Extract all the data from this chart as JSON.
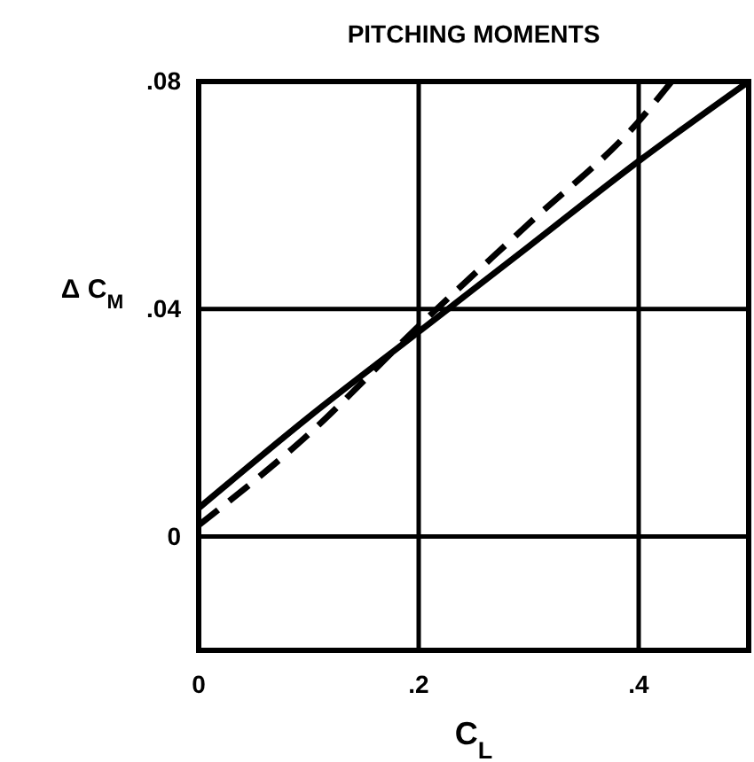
{
  "chart_data": {
    "type": "line",
    "title": "PITCHING MOMENTS",
    "xlabel": "C$_{L}$",
    "ylabel": "Δ C$_{M}$",
    "xlim": [
      0,
      0.5
    ],
    "ylim": [
      -0.02,
      0.08
    ],
    "xticks": [
      {
        "value": 0,
        "label": "0"
      },
      {
        "value": 0.2,
        "label": ".2"
      },
      {
        "value": 0.4,
        "label": ".4"
      }
    ],
    "yticks": [
      {
        "value": 0,
        "label": "0"
      },
      {
        "value": 0.04,
        "label": ".04"
      },
      {
        "value": 0.08,
        "label": ".08"
      }
    ],
    "grid": true,
    "series": [
      {
        "color": "#000000",
        "line_style": "solid",
        "x": [
          0,
          0.1,
          0.2,
          0.3,
          0.4,
          0.5
        ],
        "values": [
          0.005,
          0.021,
          0.036,
          0.051,
          0.066,
          0.08
        ]
      },
      {
        "color": "#000000",
        "line_style": "dashed",
        "x": [
          0,
          0.1,
          0.2,
          0.3,
          0.4,
          0.43
        ],
        "values": [
          0.002,
          0.018,
          0.037,
          0.055,
          0.073,
          0.08
        ]
      }
    ]
  }
}
